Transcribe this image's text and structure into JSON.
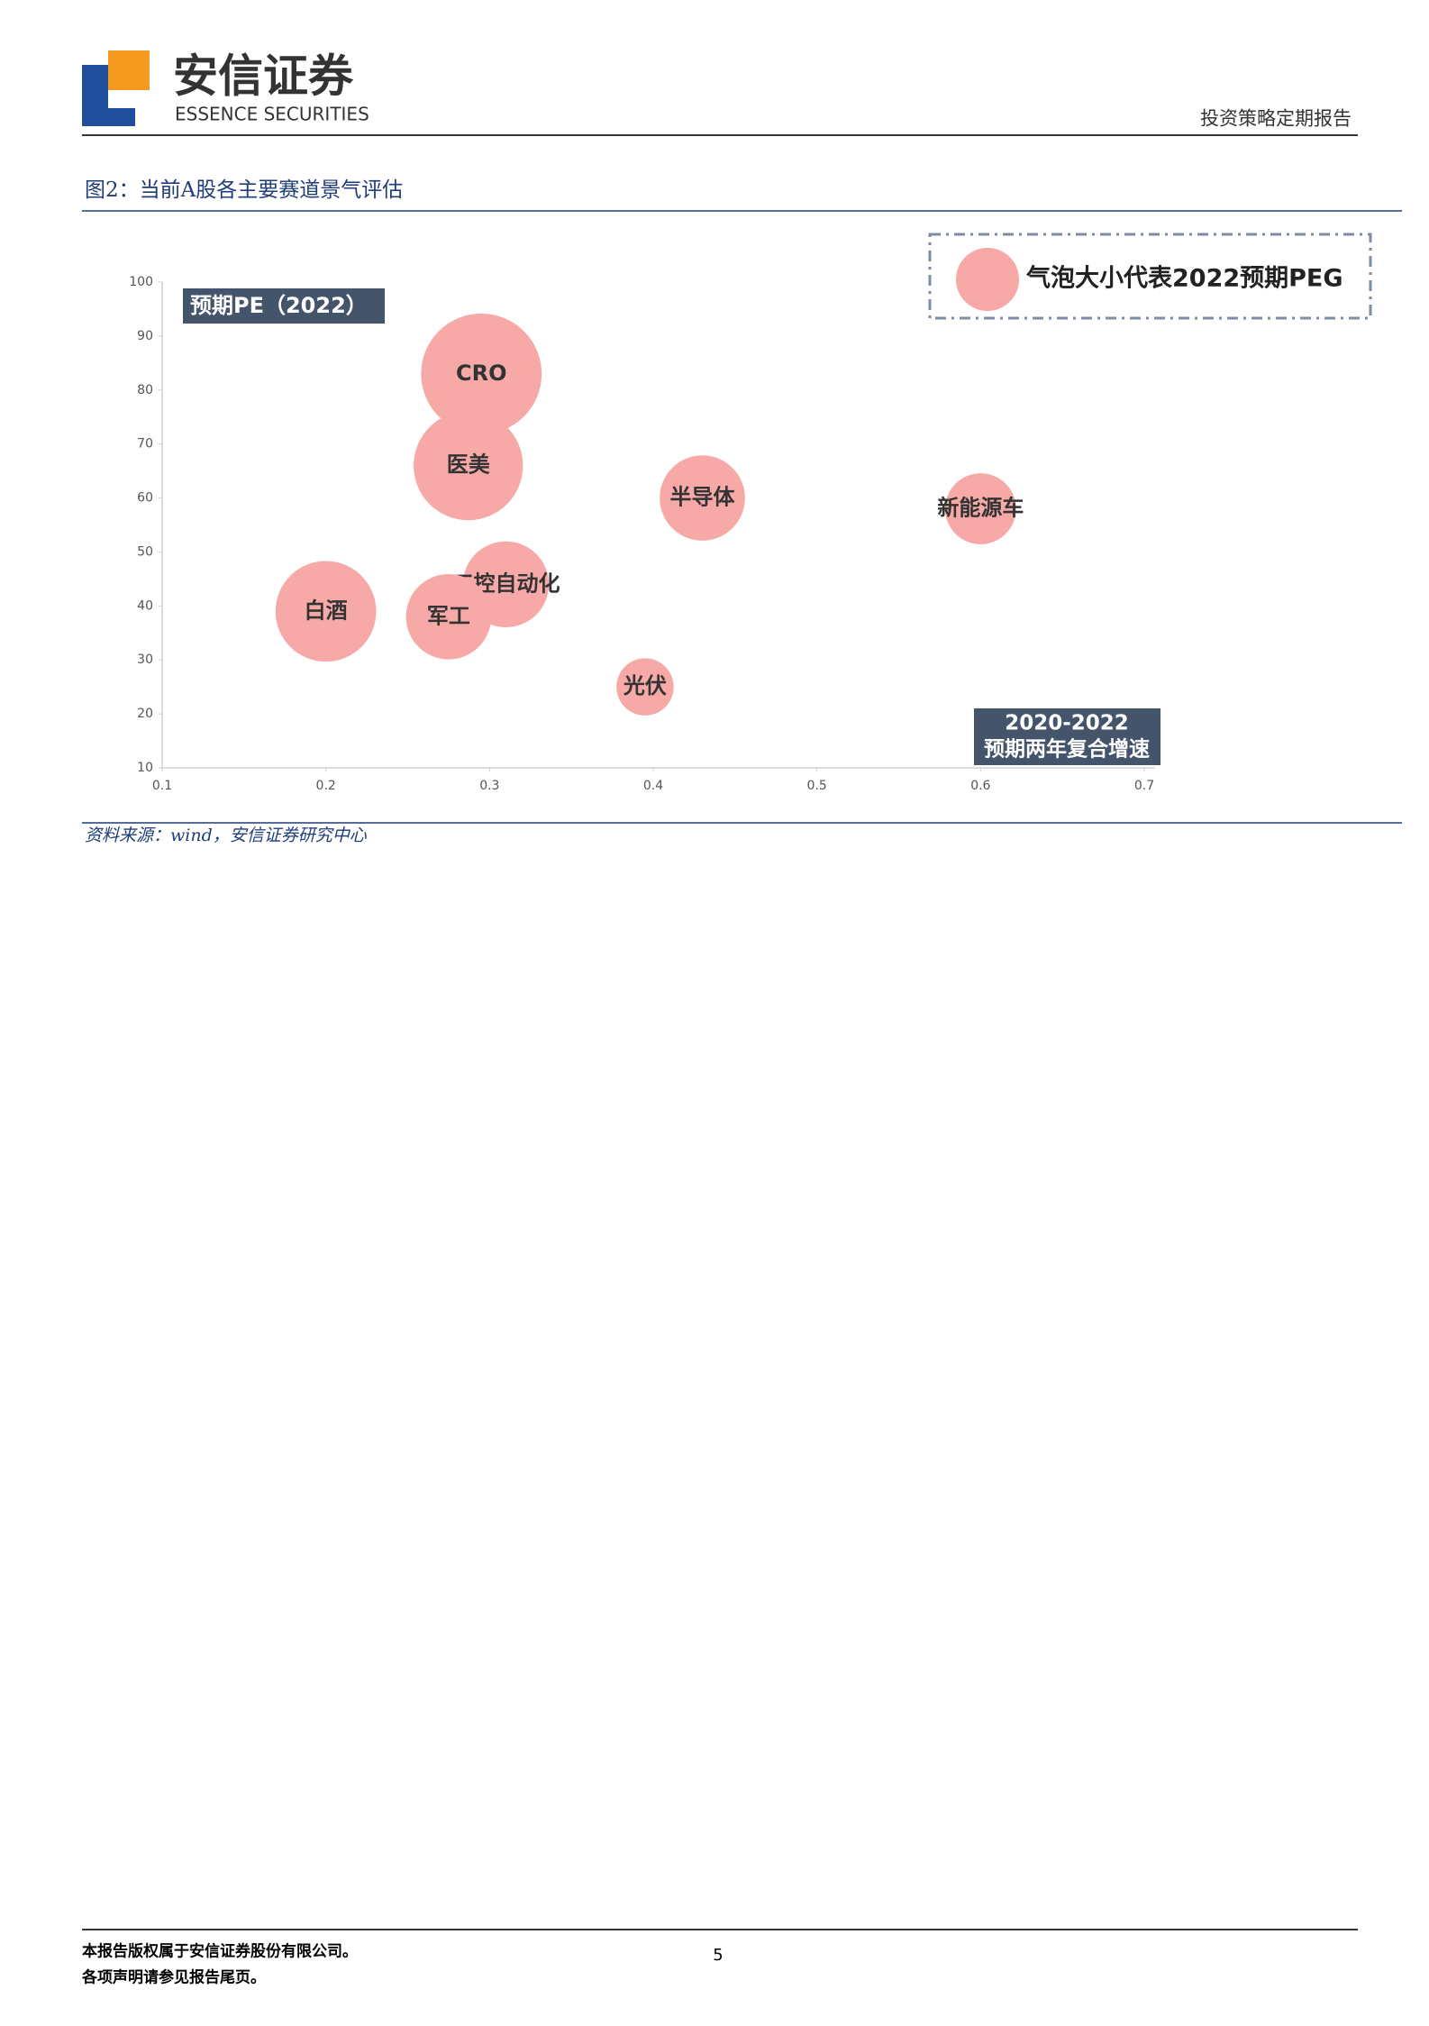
{
  "header": {
    "company": "安信证券",
    "company_en": "ESSENCE SECURITIES",
    "report_type": "投资策略定期报告"
  },
  "figure": {
    "title": "图2：当前A股各主要赛道景气评估",
    "source": "资料来源：wind，安信证券研究中心"
  },
  "chart_data": {
    "type": "bubble",
    "ylabel": "预期PE（2022）",
    "xlabel": [
      "2020-2022",
      "预期两年复合增速"
    ],
    "size_legend": "气泡大小代表2022预期PEG",
    "categories": [
      "CRO",
      "医美",
      "半导体",
      "新能源车",
      "工控自动化",
      "白酒",
      "军工",
      "光伏"
    ],
    "x": [
      0.295,
      0.287,
      0.43,
      0.6,
      0.31,
      0.2,
      0.275,
      0.395
    ],
    "values": [
      83,
      66,
      60,
      58,
      44,
      39,
      38,
      25
    ],
    "sizes": [
      2.8,
      2.3,
      1.4,
      0.97,
      1.42,
      1.95,
      1.4,
      0.63
    ],
    "color": "#f7a9a8",
    "xlim": [
      0.1,
      0.7
    ],
    "xticks": [
      0.1,
      0.2,
      0.3,
      0.4,
      0.5,
      0.6,
      0.7
    ],
    "ylim": [
      10,
      100
    ],
    "yticks": [
      10,
      20,
      30,
      40,
      50,
      60,
      70,
      80,
      90,
      100
    ]
  },
  "footer": {
    "lines": [
      "本报告版权属于安信证券股份有限公司。",
      "各项声明请参见报告尾页。"
    ],
    "page": "5"
  }
}
